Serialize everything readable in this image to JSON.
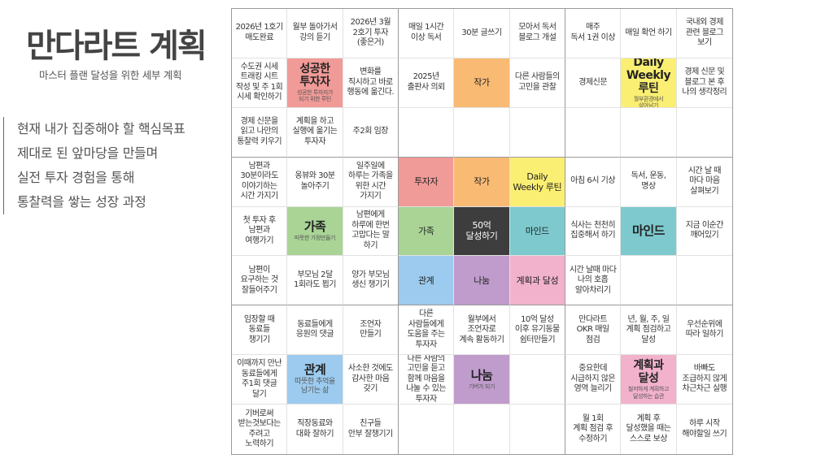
{
  "header": {
    "title": "만다라트 계획",
    "subtitle": "마스터 플랜 달성을 위한 세부 계획"
  },
  "goal_lines": [
    "현재 내가 집중해야 할 핵심목표",
    "제대로 된 앞마당을 만들며",
    "실전 투자 경험을 통해",
    "통찰력을 쌓는 성장 과정"
  ],
  "colors": {
    "investor": "#f19b98",
    "writer": "#f9bb74",
    "routine": "#fbef73",
    "family": "#a9d496",
    "core": "#3d3d3d",
    "mind": "#7dc9ce",
    "relation": "#9ccbef",
    "sharing": "#c09ccd",
    "planning": "#f2b2cc"
  },
  "grid": [
    [
      {
        "text": "2026년 1호기\n매도완료"
      },
      {
        "text": "월부 돌아가서\n강의 듣기"
      },
      {
        "text": "2026년 3월\n2호기 투자\n(좋은거)"
      },
      {
        "text": "매일 1시간\n이상 독서"
      },
      {
        "text": "30분 글쓰기"
      },
      {
        "text": "모아서 독서\n블로그 개설"
      },
      {
        "text": "매주\n독서 1권 이상"
      },
      {
        "text": "매일 확언 하기"
      },
      {
        "text": "국내외 경제\n관련 블로그\n보기"
      }
    ],
    [
      {
        "text": "수도권 시세\n트래킹 시트\n작성 및 주 1회\n시세 확인하기"
      },
      {
        "type": "sub-main",
        "text": "성공한\n투자자",
        "sub": "성공한 투자자가\n되기 위한 루틴",
        "color": "investor"
      },
      {
        "text": "변화를\n직시하고 바로\n행동에 옮긴다."
      },
      {
        "text": "2025년\n출판사 의뢰"
      },
      {
        "type": "center",
        "text": "작가",
        "color": "writer"
      },
      {
        "text": "다른 사람들의\n고민을 관찰"
      },
      {
        "text": "경제신문"
      },
      {
        "type": "sub-main",
        "text": "Daily\nWeekly 루틴",
        "sub": "월부환경에서\n살아남기",
        "color": "routine"
      },
      {
        "text": "경제 신문 및\n블로그 본 후\n나의 생각정리"
      }
    ],
    [
      {
        "text": "경제 신문을\n읽고 나만의\n통찰력 키우기"
      },
      {
        "text": "계획을 하고\n실행에 옮기는\n투자자"
      },
      {
        "text": "주2회 임장"
      },
      {
        "text": ""
      },
      {
        "text": ""
      },
      {
        "text": ""
      },
      {
        "text": ""
      },
      {
        "text": ""
      },
      {
        "text": ""
      }
    ],
    [
      {
        "text": "남편과\n30분이라도\n이야기하는\n시간 가지기"
      },
      {
        "text": "옹뷰와 30분\n놀아주기"
      },
      {
        "text": "일주일에\n하루는 가족을\n위한 시간\n가지기"
      },
      {
        "type": "center",
        "text": "투자자",
        "color": "investor"
      },
      {
        "type": "center",
        "text": "작가",
        "color": "writer"
      },
      {
        "type": "center",
        "text": "Daily\nWeekly 루틴",
        "color": "routine"
      },
      {
        "text": "아침 6시 기상"
      },
      {
        "text": "독서, 운동,\n명상"
      },
      {
        "text": "시간 날 때\n마다 마음\n살펴보기"
      }
    ],
    [
      {
        "text": "첫 투자 후\n남편과\n여행가기"
      },
      {
        "type": "sub-main",
        "text": "가족",
        "sub": "따뜻한 가정만들기",
        "color": "family"
      },
      {
        "text": "남편에게\n하루에 한번\n고맙다는 말\n하기"
      },
      {
        "type": "center",
        "text": "가족",
        "color": "family"
      },
      {
        "type": "center",
        "text": "50억\n달성하기",
        "color": "core",
        "white": true
      },
      {
        "type": "center",
        "text": "마인드",
        "color": "mind"
      },
      {
        "text": "식사는 천천히\n집중해서 하기"
      },
      {
        "type": "sub-main",
        "text": "마인드",
        "sub": "",
        "color": "mind"
      },
      {
        "text": "지금 이순간\n깨어있기"
      }
    ],
    [
      {
        "text": "남편이\n요구하는 것\n잘들어주기"
      },
      {
        "text": "부모님 2달\n1회라도 뵙기"
      },
      {
        "text": "양가 부모님\n생신 챙기기"
      },
      {
        "type": "center",
        "text": "관계",
        "color": "relation"
      },
      {
        "type": "center",
        "text": "나눔",
        "color": "sharing"
      },
      {
        "type": "center",
        "text": "계획과 달성",
        "color": "planning"
      },
      {
        "text": "시간 날때 마다\n나의 호흡\n알아차리기"
      },
      {
        "text": ""
      },
      {
        "text": ""
      }
    ],
    [
      {
        "text": "임장할 때\n동료들\n챙기기"
      },
      {
        "text": "동료들에게\n응원의 댓글"
      },
      {
        "text": "조언자\n만들기"
      },
      {
        "text": "다른\n사람들에게\n도움을 주는\n투자자"
      },
      {
        "text": "월부에서\n조언자로\n계속 활동하기"
      },
      {
        "text": "10억 달성\n이후 유기동물\n쉼터만들기"
      },
      {
        "text": "만다라트\nOKR 매일\n점검"
      },
      {
        "text": "년, 월, 주, 일\n계획 점검하고\n달성"
      },
      {
        "text": "우선순위에\n따라 일하기"
      }
    ],
    [
      {
        "text": "이때까지 만난\n동료들에게\n주1회 댓글\n달기"
      },
      {
        "type": "sub-main",
        "text": "관계",
        "sub": "따뜻한 추억을\n남기는 삶",
        "color": "relation",
        "subBig": true
      },
      {
        "text": "사소한 것에도\n감사한 마음\n갖기"
      },
      {
        "text": "다른 사람의\n고민을 듣고\n함께 마음을\n나눌 수 있는\n투자자"
      },
      {
        "type": "sub-main",
        "text": "나눔",
        "sub": "기버가 되기",
        "color": "sharing"
      },
      {
        "text": ""
      },
      {
        "text": "중요한데\n시급하지 않은\n영역 늘리기"
      },
      {
        "type": "sub-main",
        "text": "계획과\n달성",
        "sub": "철저하게 계획하고\n달성하는 습관",
        "color": "planning"
      },
      {
        "text": "바빠도\n조급하지 않게\n차근차근 실행"
      }
    ],
    [
      {
        "text": "기버로써\n받는것보다는\n주려고\n노력하기"
      },
      {
        "text": "직장동료와\n대화 잘하기"
      },
      {
        "text": "친구들\n안부 잘챙기기"
      },
      {
        "text": ""
      },
      {
        "text": ""
      },
      {
        "text": ""
      },
      {
        "text": "월 1회\n계획 점검 후\n수정하기"
      },
      {
        "text": "계획 후\n달성했을 때는\n스스로 보상"
      },
      {
        "text": "하루 시작\n해야할일 쓰기"
      }
    ]
  ]
}
